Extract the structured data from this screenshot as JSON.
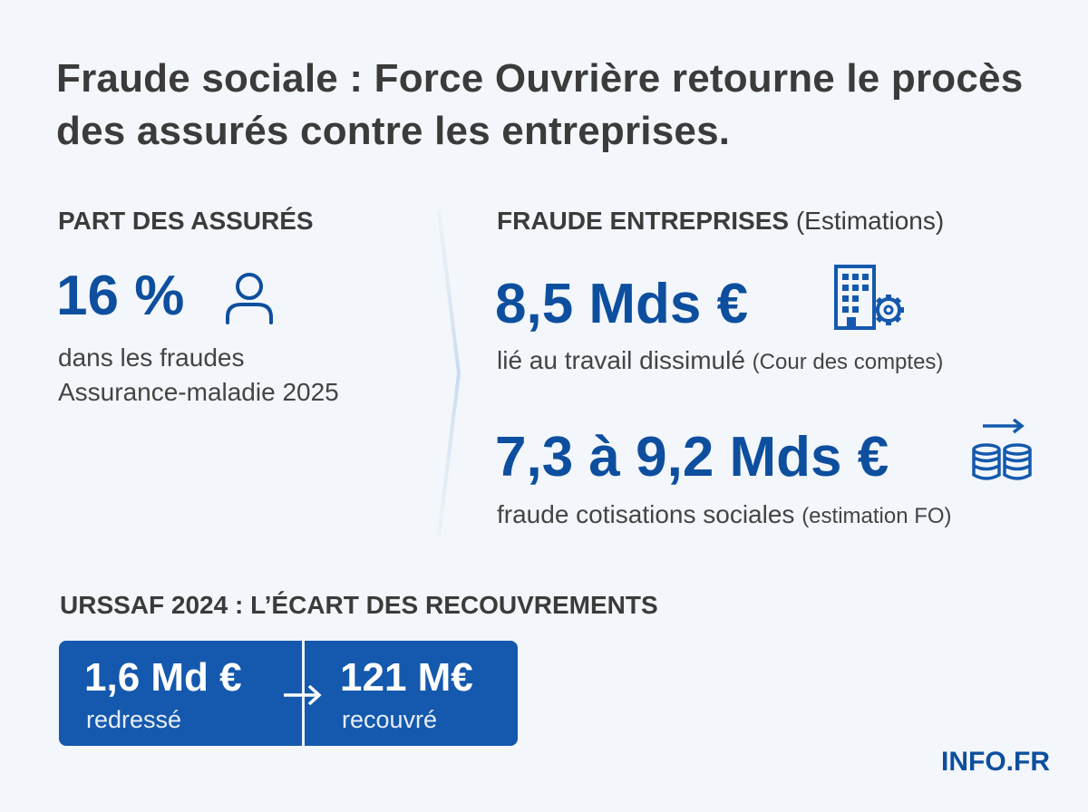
{
  "title": "Fraude sociale : Force Ouvrière retourne le procès des assurés contre les entreprises.",
  "left": {
    "heading": "PART DES ASSURÉS",
    "value": "16 %",
    "icon": "person-icon",
    "desc_line1": "dans les fraudes",
    "desc_line2": "Assurance-maladie 2025"
  },
  "right": {
    "heading": "FRAUDE ENTREPRISES",
    "heading_note": "(Estimations)",
    "item1": {
      "value": "8,5 Mds €",
      "icon": "building-gear-icon",
      "desc": "lié au travail dissimulé",
      "source": "(Cour des comptes)"
    },
    "item2": {
      "value": "7,3 à 9,2 Mds €",
      "icon": "coins-arrow-icon",
      "desc": "fraude cotisations sociales",
      "source": "(estimation FO)"
    }
  },
  "urssaf": {
    "heading": "URSSAF 2024 : L’ÉCART DES RECOUVREMENTS",
    "left_value": "1,6 Md €",
    "left_label": "redressé",
    "right_value": "121 M€",
    "right_label": "recouvré",
    "icon": "arrow-right-icon"
  },
  "footer": "INFO.FR",
  "colors": {
    "accent": "#0d4f9e",
    "box": "#1459ad",
    "background": "#f3f6fa",
    "text": "#3b3b3b"
  }
}
